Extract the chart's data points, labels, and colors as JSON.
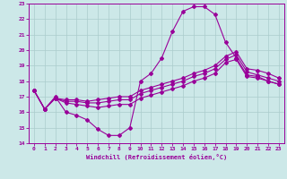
{
  "xlabel": "Windchill (Refroidissement éolien,°C)",
  "background_color": "#cce8e8",
  "line_color": "#990099",
  "grid_color": "#aacccc",
  "xlim": [
    -0.5,
    23.5
  ],
  "ylim": [
    14,
    23
  ],
  "xticks": [
    0,
    1,
    2,
    3,
    4,
    5,
    6,
    7,
    8,
    9,
    10,
    11,
    12,
    13,
    14,
    15,
    16,
    17,
    18,
    19,
    20,
    21,
    22,
    23
  ],
  "yticks": [
    14,
    15,
    16,
    17,
    18,
    19,
    20,
    21,
    22,
    23
  ],
  "x": [
    0,
    1,
    2,
    3,
    4,
    5,
    6,
    7,
    8,
    9,
    10,
    11,
    12,
    13,
    14,
    15,
    16,
    17,
    18,
    19,
    20,
    21,
    22,
    23
  ],
  "line1_y": [
    17.4,
    16.2,
    17.0,
    16.0,
    15.8,
    15.5,
    14.9,
    14.5,
    14.5,
    15.0,
    18.0,
    18.5,
    19.5,
    21.2,
    22.5,
    22.8,
    22.8,
    22.3,
    20.5,
    19.5,
    18.4,
    18.3,
    18.0,
    17.8
  ],
  "line2_y": [
    17.4,
    16.2,
    16.9,
    16.6,
    16.5,
    16.4,
    16.3,
    16.4,
    16.5,
    16.5,
    16.9,
    17.1,
    17.3,
    17.5,
    17.7,
    18.0,
    18.2,
    18.5,
    19.2,
    19.4,
    18.3,
    18.2,
    18.0,
    17.8
  ],
  "line3_y": [
    17.4,
    16.2,
    16.9,
    16.7,
    16.7,
    16.6,
    16.6,
    16.7,
    16.8,
    16.8,
    17.2,
    17.4,
    17.6,
    17.8,
    18.0,
    18.3,
    18.5,
    18.8,
    19.4,
    19.7,
    18.6,
    18.4,
    18.2,
    18.0
  ],
  "line4_y": [
    17.4,
    16.2,
    16.9,
    16.8,
    16.8,
    16.7,
    16.8,
    16.9,
    17.0,
    17.0,
    17.4,
    17.6,
    17.8,
    18.0,
    18.2,
    18.5,
    18.7,
    19.0,
    19.6,
    19.9,
    18.8,
    18.7,
    18.5,
    18.2
  ]
}
